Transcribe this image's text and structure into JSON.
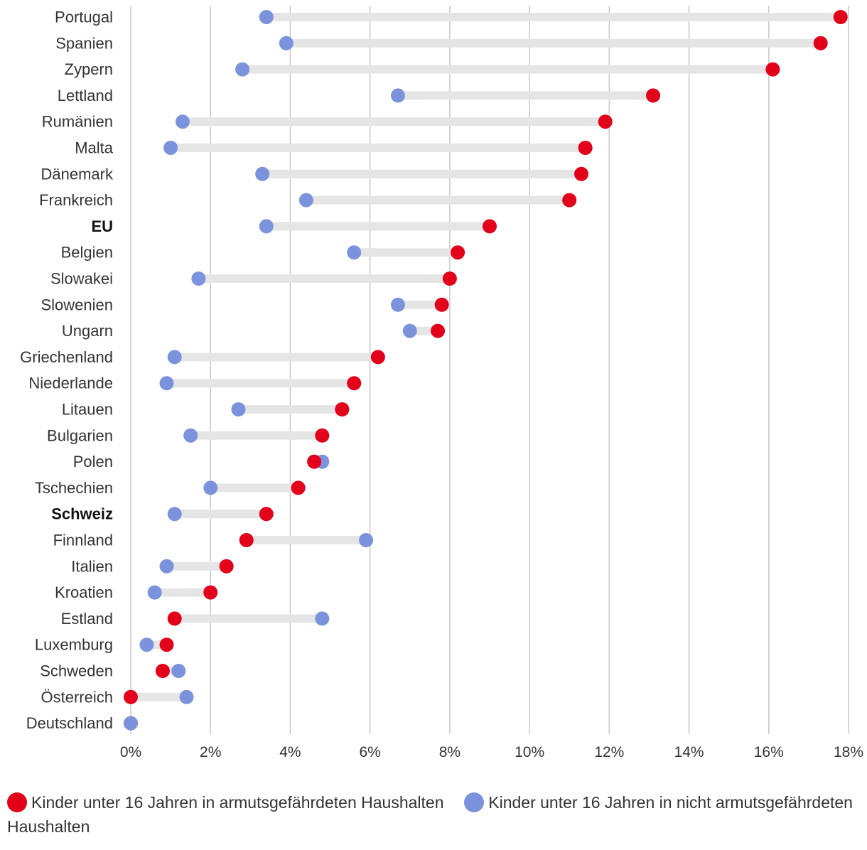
{
  "chart_data": {
    "type": "dumbbell",
    "title": "",
    "xlabel": "",
    "ylabel": "",
    "xlim": [
      0,
      18
    ],
    "x_ticks": [
      0,
      2,
      4,
      6,
      8,
      10,
      12,
      14,
      16,
      18
    ],
    "x_tick_labels": [
      "0%",
      "2%",
      "4%",
      "6%",
      "8%",
      "10%",
      "12%",
      "14%",
      "16%",
      "18%"
    ],
    "grid": true,
    "bold_categories": [
      "EU",
      "Schweiz"
    ],
    "categories": [
      "Portugal",
      "Spanien",
      "Zypern",
      "Lettland",
      "Rumänien",
      "Malta",
      "Dänemark",
      "Frankreich",
      "EU",
      "Belgien",
      "Slowakei",
      "Slowenien",
      "Ungarn",
      "Griechenland",
      "Niederlande",
      "Litauen",
      "Bulgarien",
      "Polen",
      "Tschechien",
      "Schweiz",
      "Finnland",
      "Italien",
      "Kroatien",
      "Estland",
      "Luxemburg",
      "Schweden",
      "Österreich",
      "Deutschland"
    ],
    "series": [
      {
        "name": "Kinder unter 16 Jahren in armutsgefährdeten Haushalten",
        "color": "#e2001a",
        "values": [
          17.8,
          17.3,
          16.1,
          13.1,
          11.9,
          11.4,
          11.3,
          11.0,
          9.0,
          8.2,
          8.0,
          7.8,
          7.7,
          6.2,
          5.6,
          5.3,
          4.8,
          4.6,
          4.2,
          3.4,
          2.9,
          2.4,
          2.0,
          1.1,
          0.9,
          0.8,
          0.0,
          0.0
        ]
      },
      {
        "name": "Kinder unter 16 Jahren in nicht armutsgefährdeten Haushalten",
        "color": "#7b93dc",
        "values": [
          3.4,
          3.9,
          2.8,
          6.7,
          1.3,
          1.0,
          3.3,
          4.4,
          3.4,
          5.6,
          1.7,
          6.7,
          7.0,
          1.1,
          0.9,
          2.7,
          1.5,
          4.8,
          2.0,
          1.1,
          5.9,
          0.9,
          0.6,
          4.8,
          0.4,
          1.2,
          1.4,
          0.0
        ]
      }
    ],
    "connector_color": "#e5e5e5",
    "legend": "bottom"
  }
}
